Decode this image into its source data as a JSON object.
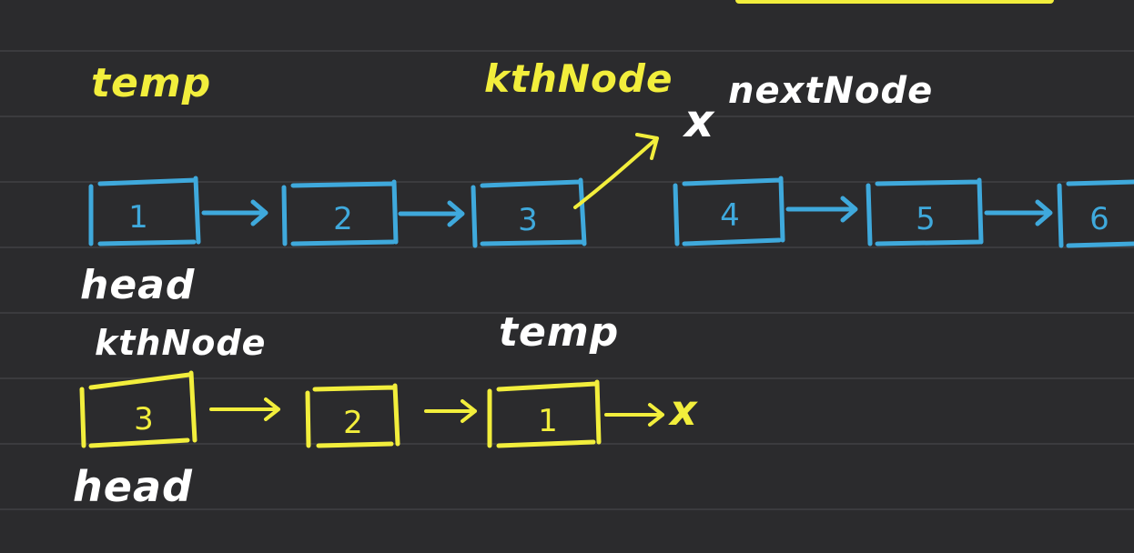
{
  "colors": {
    "background": "#2b2b2d",
    "rule_lines": "#3b3b3e",
    "blue_ink": "#3fa9dc",
    "yellow_ink": "#f2ee3c",
    "white_ink": "#ffffff"
  },
  "top_list": {
    "nodes": [
      "1",
      "2",
      "3",
      "4",
      "5",
      "6"
    ],
    "labels": {
      "temp": "temp",
      "kth_node": "kthNode",
      "next_node": "nextNode",
      "cut_mark": "x",
      "head": "head"
    }
  },
  "bottom_list": {
    "nodes": [
      "3",
      "2",
      "1"
    ],
    "end_mark": "x",
    "labels": {
      "kth_node": "kthNode",
      "temp": "temp",
      "head": "head"
    }
  }
}
